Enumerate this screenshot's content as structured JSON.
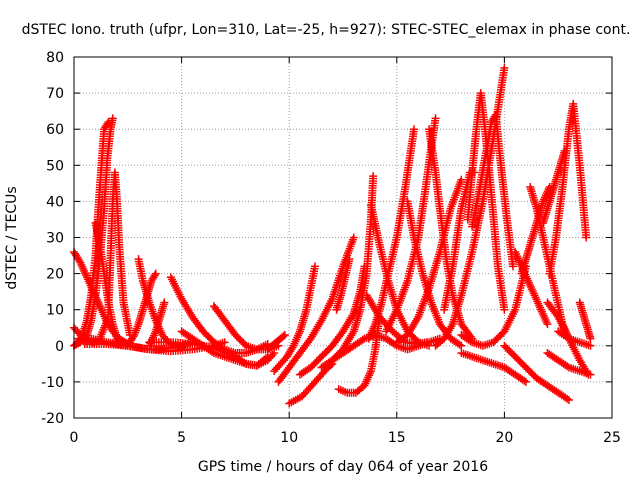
{
  "chart_data": {
    "type": "scatter",
    "title": "dSTEC Iono. truth (ufpr, Lon=310, Lat=-25, h=927): STEC-STEC_elemax in phase cont.",
    "xlabel": "GPS time / hours of day 064 of year 2016",
    "ylabel": "dSTEC  / TECUs",
    "xlim": [
      0,
      25
    ],
    "ylim": [
      -20,
      80
    ],
    "xticks": [
      0,
      5,
      10,
      15,
      20,
      25
    ],
    "yticks": [
      -20,
      -10,
      0,
      10,
      20,
      30,
      40,
      50,
      60,
      70,
      80
    ],
    "grid": true,
    "marker": "+",
    "color": "#ff0000",
    "series": [
      {
        "x": [
          0.0,
          0.3,
          0.6,
          0.9,
          1.2,
          1.5,
          1.8,
          2.1,
          2.5
        ],
        "y": [
          26,
          23,
          19,
          15,
          11,
          7,
          4,
          2,
          0.5
        ]
      },
      {
        "x": [
          0.0,
          0.2,
          0.4,
          0.6,
          0.8,
          1.0,
          1.1,
          1.25,
          1.4,
          1.6
        ],
        "y": [
          0,
          1,
          3,
          7,
          14,
          25,
          35,
          48,
          60,
          62
        ]
      },
      {
        "x": [
          0.0,
          0.3,
          0.6,
          0.8,
          1.0,
          1.2,
          1.4,
          1.55,
          1.7,
          1.8
        ],
        "y": [
          0,
          1,
          3,
          7,
          14,
          24,
          38,
          52,
          60,
          63
        ]
      },
      {
        "x": [
          1.0,
          1.2,
          1.4,
          1.6,
          1.8,
          2.0,
          2.2
        ],
        "y": [
          34,
          28,
          20,
          12,
          6,
          2,
          1
        ]
      },
      {
        "x": [
          1.6,
          1.7,
          1.8,
          1.9,
          2.0,
          2.1,
          2.3,
          2.6
        ],
        "y": [
          10,
          25,
          40,
          48,
          40,
          28,
          12,
          3
        ]
      },
      {
        "x": [
          0.0,
          0.3,
          0.6,
          0.9,
          1.2,
          1.6
        ],
        "y": [
          5,
          3,
          1.5,
          1,
          2,
          8
        ]
      },
      {
        "x": [
          0.2,
          0.8,
          1.5,
          2.0,
          2.5,
          3.0,
          3.5,
          4.0,
          4.5,
          5.0,
          5.5
        ],
        "y": [
          2,
          2,
          1,
          0.5,
          0,
          -0.5,
          -1,
          -1,
          -0.5,
          0,
          1
        ]
      },
      {
        "x": [
          0.5,
          1.5,
          2.5,
          3.5,
          4.5,
          5.5,
          6.5,
          7.0
        ],
        "y": [
          0.5,
          0.5,
          0,
          -1,
          -1.5,
          -1,
          0,
          1
        ]
      },
      {
        "x": [
          2.4,
          2.6,
          2.8,
          3.0,
          3.2,
          3.4,
          3.6,
          3.8
        ],
        "y": [
          0,
          1,
          3,
          6,
          10,
          14,
          18,
          20
        ]
      },
      {
        "x": [
          3.0,
          3.2,
          3.5,
          3.8,
          4.1,
          4.4,
          4.7,
          5.0
        ],
        "y": [
          24,
          18,
          12,
          7,
          3,
          1,
          0,
          -0.5
        ]
      },
      {
        "x": [
          3.5,
          3.8,
          4.0,
          4.2
        ],
        "y": [
          0,
          4,
          8,
          12
        ]
      },
      {
        "x": [
          4.5,
          5.0,
          5.5,
          6.0,
          6.5,
          7.0,
          7.5,
          8.0,
          8.5,
          9.0
        ],
        "y": [
          19,
          13,
          8,
          4,
          1,
          -1,
          -2,
          -2,
          -1,
          0.5
        ]
      },
      {
        "x": [
          3.5,
          4.5,
          5.5,
          6.5,
          7.5,
          8.0,
          8.5,
          9.0
        ],
        "y": [
          1,
          1,
          0.5,
          -0.5,
          -3,
          -5,
          -5.5,
          -3
        ]
      },
      {
        "x": [
          5.0,
          5.5,
          6.0,
          6.5,
          7.0,
          7.5,
          8.0,
          8.5,
          9.0,
          9.3
        ],
        "y": [
          4,
          2,
          0,
          -2,
          -3,
          -4,
          -5,
          -5.5,
          -4,
          -2
        ]
      },
      {
        "x": [
          6.5,
          7.0,
          7.5,
          8.0,
          8.5,
          9.0,
          9.5
        ],
        "y": [
          11,
          7,
          3,
          0,
          -1,
          -1,
          0
        ]
      },
      {
        "x": [
          9.0,
          9.2,
          9.4,
          9.6,
          9.8
        ],
        "y": [
          -1,
          0,
          1,
          2,
          3
        ]
      },
      {
        "x": [
          10.0,
          10.3,
          10.6,
          10.9,
          11.2,
          11.5,
          11.8,
          12.0
        ],
        "y": [
          -16,
          -15,
          -14,
          -12,
          -10,
          -8,
          -6,
          -5
        ]
      },
      {
        "x": [
          9.3,
          9.6,
          9.9,
          10.2,
          10.5,
          10.8,
          11.0,
          11.2
        ],
        "y": [
          -7,
          -5,
          -3,
          0,
          4,
          10,
          16,
          22
        ]
      },
      {
        "x": [
          9.5,
          10.0,
          10.5,
          11.0,
          11.5,
          12.0,
          12.5,
          13.0
        ],
        "y": [
          -10,
          -6,
          -2,
          2,
          7,
          13,
          22,
          30
        ]
      },
      {
        "x": [
          10.5,
          11.0,
          11.5,
          12.0,
          12.5,
          13.0,
          13.3,
          13.5
        ],
        "y": [
          -8,
          -6,
          -3,
          0,
          4,
          9,
          15,
          22
        ]
      },
      {
        "x": [
          11.5,
          12.0,
          12.5,
          13.0,
          13.3,
          13.6,
          13.8,
          13.9
        ],
        "y": [
          -6,
          -4,
          -1,
          4,
          10,
          20,
          35,
          47
        ]
      },
      {
        "x": [
          12.3,
          12.7,
          13.1,
          13.5,
          13.8,
          14.0,
          14.2
        ],
        "y": [
          -12,
          -13,
          -13,
          -11,
          -7,
          -1,
          8
        ]
      },
      {
        "x": [
          12.0,
          12.5,
          13.0,
          13.5,
          14.0,
          14.5,
          15.0,
          15.5,
          16.0,
          16.5,
          17.0
        ],
        "y": [
          -4,
          -2,
          0,
          2,
          3,
          2,
          0,
          -1,
          0,
          1,
          2
        ]
      },
      {
        "x": [
          12.2,
          12.4,
          12.6,
          12.8
        ],
        "y": [
          10,
          14,
          19,
          24
        ]
      },
      {
        "x": [
          13.7,
          14.0,
          14.3,
          14.6,
          15.0,
          15.4,
          15.8
        ],
        "y": [
          2,
          6,
          12,
          20,
          30,
          44,
          60
        ]
      },
      {
        "x": [
          13.8,
          14.2,
          14.6,
          15.0,
          15.5,
          16.0,
          16.5
        ],
        "y": [
          39,
          28,
          18,
          10,
          4,
          1,
          0
        ]
      },
      {
        "x": [
          13.6,
          14.2,
          14.8,
          15.4,
          16.0,
          16.4
        ],
        "y": [
          14,
          8,
          4,
          1,
          0.5,
          1
        ]
      },
      {
        "x": [
          14.5,
          15.0,
          15.5,
          16.0,
          16.3,
          16.6,
          16.8
        ],
        "y": [
          4,
          10,
          18,
          30,
          42,
          55,
          63
        ]
      },
      {
        "x": [
          15.0,
          15.5,
          16.0,
          16.5,
          17.0,
          17.5,
          18.0
        ],
        "y": [
          1,
          3,
          8,
          16,
          26,
          38,
          46
        ]
      },
      {
        "x": [
          15.5,
          15.8,
          16.2,
          16.6,
          17.0,
          17.5,
          18.0
        ],
        "y": [
          40,
          30,
          20,
          12,
          6,
          2,
          0
        ]
      },
      {
        "x": [
          16.5,
          16.8,
          17.0,
          17.3,
          17.6,
          18.0,
          18.5
        ],
        "y": [
          60,
          48,
          38,
          24,
          14,
          6,
          2
        ]
      },
      {
        "x": [
          16.8,
          17.2,
          17.6,
          18.0,
          18.5,
          19.0,
          19.5,
          20.0
        ],
        "y": [
          0,
          2,
          6,
          14,
          26,
          40,
          58,
          77
        ]
      },
      {
        "x": [
          17.2,
          17.6,
          18.0,
          18.4,
          18.6
        ],
        "y": [
          10,
          22,
          38,
          48,
          48
        ]
      },
      {
        "x": [
          18.3,
          18.5,
          18.7,
          18.9,
          19.1,
          19.3,
          19.5,
          19.7,
          20.0
        ],
        "y": [
          35,
          48,
          60,
          70,
          60,
          48,
          35,
          22,
          10
        ]
      },
      {
        "x": [
          18.5,
          18.8,
          19.1,
          19.4,
          19.6,
          19.8,
          20.1,
          20.4
        ],
        "y": [
          33,
          42,
          52,
          62,
          64,
          52,
          36,
          22
        ]
      },
      {
        "x": [
          18.0,
          18.5,
          19.0,
          19.5,
          20.0,
          20.5,
          21.0
        ],
        "y": [
          3,
          1,
          0,
          1,
          4,
          10,
          22
        ]
      },
      {
        "x": [
          18.0,
          19.0,
          20.0,
          20.5,
          21.0
        ],
        "y": [
          -2,
          -4,
          -6,
          -8,
          -10
        ]
      },
      {
        "x": [
          20.0,
          20.5,
          21.0,
          21.5,
          22.0,
          22.5,
          23.0
        ],
        "y": [
          0,
          -3,
          -6,
          -9,
          -11,
          -13,
          -15
        ]
      },
      {
        "x": [
          20.5,
          20.8,
          21.1,
          21.4,
          21.7,
          22.0
        ],
        "y": [
          26,
          22,
          18,
          14,
          10,
          6
        ]
      },
      {
        "x": [
          20.8,
          21.0,
          21.2,
          21.5,
          21.8,
          22.1
        ],
        "y": [
          20,
          24,
          28,
          34,
          40,
          44
        ]
      },
      {
        "x": [
          21.2,
          21.5,
          21.8,
          22.1,
          22.4,
          22.7,
          23.0
        ],
        "y": [
          44,
          38,
          30,
          22,
          14,
          6,
          2
        ]
      },
      {
        "x": [
          21.8,
          22.0,
          22.2,
          22.4,
          22.6,
          22.8
        ],
        "y": [
          34,
          38,
          42,
          46,
          50,
          54
        ]
      },
      {
        "x": [
          22.1,
          22.4,
          22.7,
          23.0,
          23.2,
          23.5,
          23.8
        ],
        "y": [
          20,
          30,
          44,
          60,
          67,
          50,
          30
        ]
      },
      {
        "x": [
          22.0,
          22.5,
          23.0,
          23.5,
          23.9
        ],
        "y": [
          12,
          8,
          2,
          -4,
          -8
        ]
      },
      {
        "x": [
          22.5,
          23.0,
          23.5,
          24.0
        ],
        "y": [
          4,
          2,
          1,
          0
        ]
      },
      {
        "x": [
          22.0,
          22.5,
          23.0,
          23.5,
          24.0
        ],
        "y": [
          -2,
          -4,
          -6,
          -7,
          -8
        ]
      },
      {
        "x": [
          23.5,
          23.7,
          23.9,
          24.0
        ],
        "y": [
          12,
          8,
          4,
          2
        ]
      }
    ]
  }
}
